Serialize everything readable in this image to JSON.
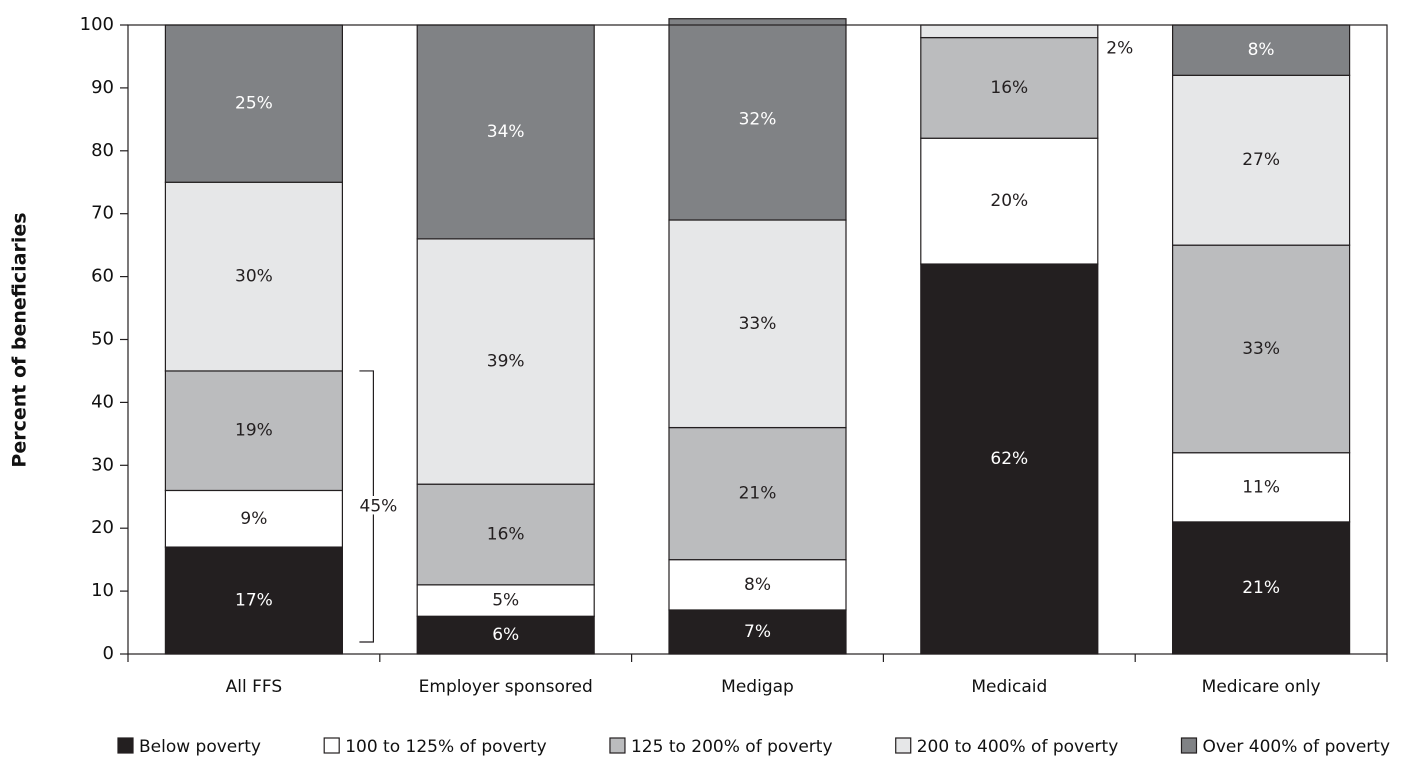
{
  "chart_data": {
    "type": "bar",
    "stacked": true,
    "title": "",
    "xlabel": "",
    "ylabel": "Percent of beneficiaries",
    "ylim": [
      0,
      100
    ],
    "yticks": [
      0,
      10,
      20,
      30,
      40,
      50,
      60,
      70,
      80,
      90,
      100
    ],
    "grid": false,
    "legend_position": "bottom",
    "categories": [
      "All FFS",
      "Employer sponsored",
      "Medigap",
      "Medicaid",
      "Medicare only"
    ],
    "series": [
      {
        "name": "Below poverty",
        "color": "#231f20",
        "text_color": "#ffffff",
        "values": [
          17,
          6,
          7,
          62,
          21
        ],
        "labels": [
          "17%",
          "6%",
          "7%",
          "62%",
          "21%"
        ]
      },
      {
        "name": "100 to 125% of poverty",
        "color": "#ffffff",
        "text_color": "#231f20",
        "values": [
          9,
          5,
          8,
          20,
          11
        ],
        "labels": [
          "9%",
          "5%",
          "8%",
          "20%",
          "11%"
        ]
      },
      {
        "name": "125 to 200% of poverty",
        "color": "#bbbcbe",
        "text_color": "#231f20",
        "values": [
          19,
          16,
          21,
          16,
          33
        ],
        "labels": [
          "19%",
          "16%",
          "21%",
          "16%",
          "33%"
        ]
      },
      {
        "name": "200 to 400% of poverty",
        "color": "#e6e7e8",
        "text_color": "#231f20",
        "values": [
          30,
          39,
          33,
          2,
          27
        ],
        "labels": [
          "30%",
          "39%",
          "33%",
          "2%",
          "27%"
        ]
      },
      {
        "name": "Over 400% of poverty",
        "color": "#808285",
        "text_color": "#ffffff",
        "values": [
          25,
          34,
          32,
          0,
          8
        ],
        "labels": [
          "25%",
          "34%",
          "32%",
          "",
          "8%"
        ]
      }
    ],
    "annotations": [
      {
        "category": "All FFS",
        "from": 0,
        "to": 45,
        "text": "45%"
      }
    ]
  }
}
